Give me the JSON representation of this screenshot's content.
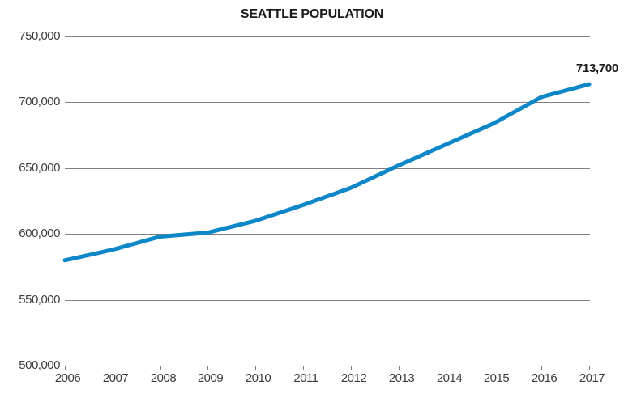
{
  "chart_data": {
    "type": "line",
    "title": "SEATTLE POPULATION",
    "xlabel": "",
    "ylabel": "",
    "x": [
      2006,
      2007,
      2008,
      2009,
      2010,
      2011,
      2012,
      2013,
      2014,
      2015,
      2016,
      2017
    ],
    "series": [
      {
        "name": "Seattle population",
        "values": [
          580000,
          588000,
          598000,
          601000,
          610000,
          622000,
          635000,
          652000,
          668000,
          684000,
          704000,
          713700
        ]
      }
    ],
    "annotation": {
      "text": "713,700",
      "year": 2017,
      "value": 713700
    },
    "ylim": [
      500000,
      750000
    ],
    "ytick_interval": 50000,
    "ytick_labels": [
      "750,000",
      "700,000",
      "650,000",
      "600,000",
      "550,000",
      "500,000"
    ],
    "xtick_labels": [
      "2006",
      "2007",
      "2008",
      "2009",
      "2010",
      "2011",
      "2012",
      "2013",
      "2014",
      "2015",
      "2016",
      "2017"
    ],
    "grid": "horizontal",
    "legend": "none",
    "colors": {
      "line": "#0e87c8",
      "grid": "#7f7f7f",
      "tick": "#7f7f7f",
      "axis_text": "#3d3d3d",
      "title_text": "#1a1a1a",
      "background": "#ffffff"
    }
  }
}
